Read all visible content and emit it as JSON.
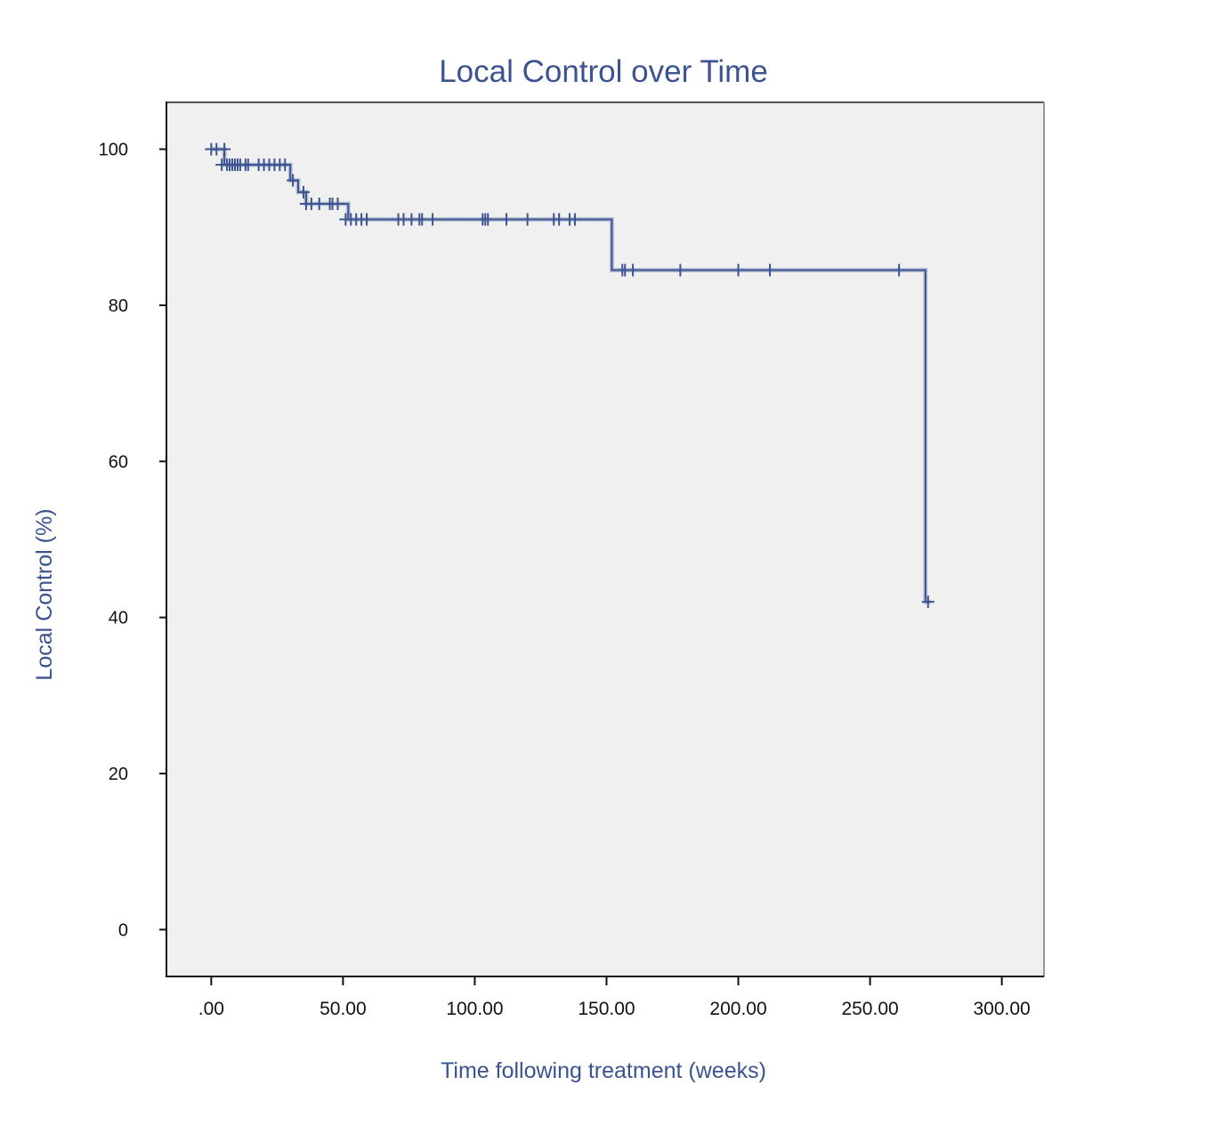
{
  "chart_data": {
    "type": "line",
    "title": "Local Control over Time",
    "xlabel": "Time following treatment (weeks)",
    "ylabel": "Local Control (%)",
    "xlim": [
      -17,
      316
    ],
    "ylim": [
      -6,
      106
    ],
    "xticks": [
      0,
      50,
      100,
      150,
      200,
      250,
      300
    ],
    "xtick_labels": [
      ".00",
      "50.00",
      "100.00",
      "150.00",
      "200.00",
      "250.00",
      "300.00"
    ],
    "yticks": [
      0,
      20,
      40,
      60,
      80,
      100
    ],
    "ytick_labels": [
      "0",
      "20",
      "40",
      "60",
      "80",
      "100"
    ],
    "grid": false,
    "colors": {
      "line": "#3b5391",
      "plot_bg": "#f0f0f0"
    },
    "series": [
      {
        "step": [
          [
            0,
            100
          ],
          [
            5,
            100
          ],
          [
            5,
            98
          ],
          [
            30,
            98
          ],
          [
            30,
            96
          ],
          [
            33,
            96
          ],
          [
            33,
            94.5
          ],
          [
            36,
            94.5
          ],
          [
            36,
            93
          ],
          [
            52,
            93
          ],
          [
            52,
            91
          ],
          [
            152,
            91
          ],
          [
            152,
            84.5
          ],
          [
            271,
            84.5
          ],
          [
            271,
            42
          ],
          [
            273,
            42
          ]
        ],
        "censored": [
          [
            0,
            100
          ],
          [
            2,
            100
          ],
          [
            5,
            100
          ],
          [
            4,
            98
          ],
          [
            6,
            98
          ],
          [
            7,
            98
          ],
          [
            8,
            98
          ],
          [
            9,
            98
          ],
          [
            10,
            98
          ],
          [
            11,
            98
          ],
          [
            13,
            98
          ],
          [
            14,
            98
          ],
          [
            18,
            98
          ],
          [
            20,
            98
          ],
          [
            22,
            98
          ],
          [
            24,
            98
          ],
          [
            26,
            98
          ],
          [
            28,
            98
          ],
          [
            31,
            96
          ],
          [
            35,
            94.5
          ],
          [
            36,
            93
          ],
          [
            38,
            93
          ],
          [
            41,
            93
          ],
          [
            45,
            93
          ],
          [
            46,
            93
          ],
          [
            48,
            93
          ],
          [
            51,
            91
          ],
          [
            53,
            91
          ],
          [
            55,
            91
          ],
          [
            57,
            91
          ],
          [
            59,
            91
          ],
          [
            71,
            91
          ],
          [
            73,
            91
          ],
          [
            76,
            91
          ],
          [
            79,
            91
          ],
          [
            80,
            91
          ],
          [
            84,
            91
          ],
          [
            103,
            91
          ],
          [
            104,
            91
          ],
          [
            105,
            91
          ],
          [
            112,
            91
          ],
          [
            120,
            91
          ],
          [
            130,
            91
          ],
          [
            132,
            91
          ],
          [
            136,
            91
          ],
          [
            138,
            91
          ],
          [
            156,
            84.5
          ],
          [
            157,
            84.5
          ],
          [
            160,
            84.5
          ],
          [
            178,
            84.5
          ],
          [
            200,
            84.5
          ],
          [
            212,
            84.5
          ],
          [
            261,
            84.5
          ],
          [
            272,
            42
          ]
        ]
      }
    ]
  }
}
